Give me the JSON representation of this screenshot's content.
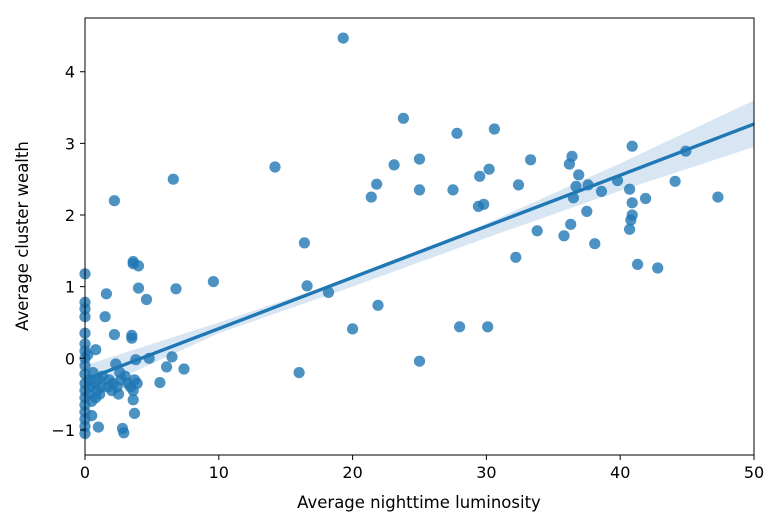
{
  "chart_data": {
    "type": "scatter",
    "title": "",
    "xlabel": "Average nighttime luminosity",
    "ylabel": "Average cluster wealth",
    "xlim": [
      0,
      50
    ],
    "ylim": [
      -1.35,
      4.75
    ],
    "xticks": [
      0,
      10,
      20,
      30,
      40,
      50
    ],
    "yticks": [
      -1,
      0,
      1,
      2,
      3,
      4
    ],
    "xtick_labels": [
      "0",
      "10",
      "20",
      "30",
      "40",
      "50"
    ],
    "ytick_labels": [
      "−1",
      "0",
      "1",
      "2",
      "3",
      "4"
    ],
    "grid": false,
    "legend": "none",
    "colors": {
      "points": "#1f77b4",
      "regression_line": "#1f77b4",
      "confidence_band": "#c8dbef"
    },
    "regression": {
      "x": [
        0,
        50
      ],
      "y": [
        -0.3,
        3.27
      ],
      "ci_band": {
        "x": [
          0,
          10,
          20,
          30,
          40,
          50
        ],
        "lower": [
          -0.5,
          0.35,
          1.0,
          1.68,
          2.34,
          2.95
        ],
        "upper": [
          -0.1,
          0.5,
          1.13,
          1.88,
          2.72,
          3.6
        ]
      }
    },
    "points": [
      [
        0.0,
        1.18
      ],
      [
        0.0,
        0.78
      ],
      [
        0.0,
        0.69
      ],
      [
        0.0,
        0.58
      ],
      [
        0.0,
        0.35
      ],
      [
        0.0,
        0.2
      ],
      [
        0.0,
        0.1
      ],
      [
        0.0,
        0.0
      ],
      [
        0.0,
        -0.1
      ],
      [
        0.0,
        -0.22
      ],
      [
        0.0,
        -0.35
      ],
      [
        0.0,
        -0.45
      ],
      [
        0.0,
        -0.55
      ],
      [
        0.0,
        -0.65
      ],
      [
        0.0,
        -0.75
      ],
      [
        0.0,
        -0.85
      ],
      [
        0.0,
        -0.95
      ],
      [
        0.0,
        -1.05
      ],
      [
        0.2,
        0.05
      ],
      [
        0.3,
        -0.3
      ],
      [
        0.3,
        -0.5
      ],
      [
        0.4,
        -0.4
      ],
      [
        0.5,
        -0.6
      ],
      [
        0.5,
        -0.8
      ],
      [
        0.6,
        -0.2
      ],
      [
        0.7,
        -0.35
      ],
      [
        0.8,
        -0.55
      ],
      [
        0.8,
        0.12
      ],
      [
        0.9,
        -0.45
      ],
      [
        1.0,
        -0.96
      ],
      [
        1.0,
        -0.3
      ],
      [
        1.1,
        -0.5
      ],
      [
        1.2,
        -0.4
      ],
      [
        1.3,
        -0.25
      ],
      [
        1.5,
        0.58
      ],
      [
        1.6,
        0.9
      ],
      [
        1.7,
        -0.4
      ],
      [
        1.8,
        -0.3
      ],
      [
        2.0,
        -0.45
      ],
      [
        2.1,
        -0.35
      ],
      [
        2.2,
        2.2
      ],
      [
        2.2,
        0.33
      ],
      [
        2.3,
        -0.08
      ],
      [
        2.4,
        -0.4
      ],
      [
        2.5,
        -0.5
      ],
      [
        2.6,
        -0.2
      ],
      [
        2.7,
        -0.3
      ],
      [
        2.8,
        -0.98
      ],
      [
        2.9,
        -1.04
      ],
      [
        3.0,
        -0.25
      ],
      [
        3.2,
        -0.35
      ],
      [
        3.4,
        -0.4
      ],
      [
        3.5,
        0.32
      ],
      [
        3.5,
        0.28
      ],
      [
        3.6,
        1.35
      ],
      [
        3.6,
        1.32
      ],
      [
        3.6,
        -0.45
      ],
      [
        3.6,
        -0.58
      ],
      [
        3.7,
        -0.77
      ],
      [
        3.7,
        -0.3
      ],
      [
        3.8,
        -0.02
      ],
      [
        3.9,
        -0.35
      ],
      [
        4.0,
        1.29
      ],
      [
        4.0,
        0.98
      ],
      [
        4.6,
        0.82
      ],
      [
        4.8,
        0.0
      ],
      [
        5.6,
        -0.34
      ],
      [
        6.1,
        -0.12
      ],
      [
        6.5,
        0.02
      ],
      [
        6.6,
        2.5
      ],
      [
        6.8,
        0.97
      ],
      [
        7.4,
        -0.15
      ],
      [
        9.6,
        1.07
      ],
      [
        14.2,
        2.67
      ],
      [
        16.0,
        -0.2
      ],
      [
        16.4,
        1.61
      ],
      [
        16.6,
        1.01
      ],
      [
        18.2,
        0.92
      ],
      [
        19.3,
        4.47
      ],
      [
        20.0,
        0.41
      ],
      [
        21.4,
        2.25
      ],
      [
        21.8,
        2.43
      ],
      [
        21.9,
        0.74
      ],
      [
        23.1,
        2.7
      ],
      [
        23.8,
        3.35
      ],
      [
        25.0,
        2.78
      ],
      [
        25.0,
        2.35
      ],
      [
        25.0,
        -0.04
      ],
      [
        27.5,
        2.35
      ],
      [
        27.8,
        3.14
      ],
      [
        28.0,
        0.44
      ],
      [
        29.4,
        2.12
      ],
      [
        29.5,
        2.54
      ],
      [
        29.8,
        2.15
      ],
      [
        30.1,
        0.44
      ],
      [
        30.2,
        2.64
      ],
      [
        30.6,
        3.2
      ],
      [
        32.2,
        1.41
      ],
      [
        32.4,
        2.42
      ],
      [
        33.3,
        2.77
      ],
      [
        33.8,
        1.78
      ],
      [
        35.8,
        1.71
      ],
      [
        36.2,
        2.71
      ],
      [
        36.3,
        1.87
      ],
      [
        36.4,
        2.82
      ],
      [
        36.5,
        2.24
      ],
      [
        36.7,
        2.4
      ],
      [
        36.9,
        2.56
      ],
      [
        37.5,
        2.05
      ],
      [
        37.6,
        2.42
      ],
      [
        38.1,
        1.6
      ],
      [
        38.6,
        2.33
      ],
      [
        39.8,
        2.48
      ],
      [
        40.7,
        2.36
      ],
      [
        40.7,
        1.8
      ],
      [
        40.8,
        1.93
      ],
      [
        40.9,
        2.0
      ],
      [
        40.9,
        2.17
      ],
      [
        40.9,
        2.96
      ],
      [
        41.3,
        1.31
      ],
      [
        41.9,
        2.23
      ],
      [
        42.8,
        1.26
      ],
      [
        44.1,
        2.47
      ],
      [
        44.9,
        2.89
      ],
      [
        47.3,
        2.25
      ]
    ]
  }
}
